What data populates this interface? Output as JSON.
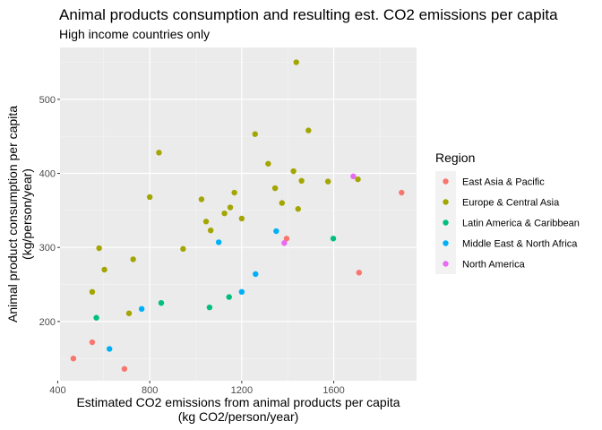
{
  "chart_data": {
    "type": "scatter",
    "title": "Animal products consumption and resulting est. CO2 emissions per capita",
    "subtitle": "High income countries only",
    "xlabel": [
      "Estimated CO2 emissions from animal products per capita",
      "(kg CO2/person/year)"
    ],
    "ylabel": [
      "Animal product consumption per capita",
      "(kg/person/year)"
    ],
    "xlim": [
      410,
      1960
    ],
    "ylim": [
      120,
      570
    ],
    "x_ticks": [
      400,
      800,
      1200,
      1600
    ],
    "y_ticks": [
      200,
      300,
      400,
      500
    ],
    "grid": true,
    "legend": {
      "title": "Region",
      "position": "right"
    },
    "series": [
      {
        "name": "East Asia & Pacific",
        "color": "#F8766D",
        "points": [
          [
            468,
            150
          ],
          [
            550,
            172
          ],
          [
            690,
            136
          ],
          [
            1395,
            312
          ],
          [
            1710,
            266
          ],
          [
            1895,
            374
          ]
        ]
      },
      {
        "name": "Europe & Central Asia",
        "color": "#A3A500",
        "points": [
          [
            550,
            240
          ],
          [
            580,
            299
          ],
          [
            603,
            270
          ],
          [
            710,
            211
          ],
          [
            728,
            284
          ],
          [
            800,
            368
          ],
          [
            840,
            428
          ],
          [
            945,
            298
          ],
          [
            1025,
            365
          ],
          [
            1045,
            335
          ],
          [
            1065,
            323
          ],
          [
            1125,
            346
          ],
          [
            1150,
            354
          ],
          [
            1168,
            374
          ],
          [
            1200,
            339
          ],
          [
            1258,
            453
          ],
          [
            1315,
            413
          ],
          [
            1345,
            380
          ],
          [
            1375,
            360
          ],
          [
            1425,
            403
          ],
          [
            1437,
            550
          ],
          [
            1445,
            352
          ],
          [
            1460,
            390
          ],
          [
            1490,
            458
          ],
          [
            1575,
            389
          ],
          [
            1705,
            392
          ]
        ]
      },
      {
        "name": "Latin America & Caribbean",
        "color": "#00BF7D",
        "points": [
          [
            568,
            205
          ],
          [
            850,
            225
          ],
          [
            1060,
            219
          ],
          [
            1145,
            233
          ],
          [
            1598,
            312
          ]
        ]
      },
      {
        "name": "Middle East & North Africa",
        "color": "#00B0F6",
        "points": [
          [
            625,
            163
          ],
          [
            765,
            217
          ],
          [
            1100,
            307
          ],
          [
            1200,
            240
          ],
          [
            1260,
            264
          ],
          [
            1350,
            322
          ]
        ]
      },
      {
        "name": "North America",
        "color": "#E76BF3",
        "points": [
          [
            1385,
            306
          ],
          [
            1685,
            396
          ]
        ]
      }
    ]
  }
}
